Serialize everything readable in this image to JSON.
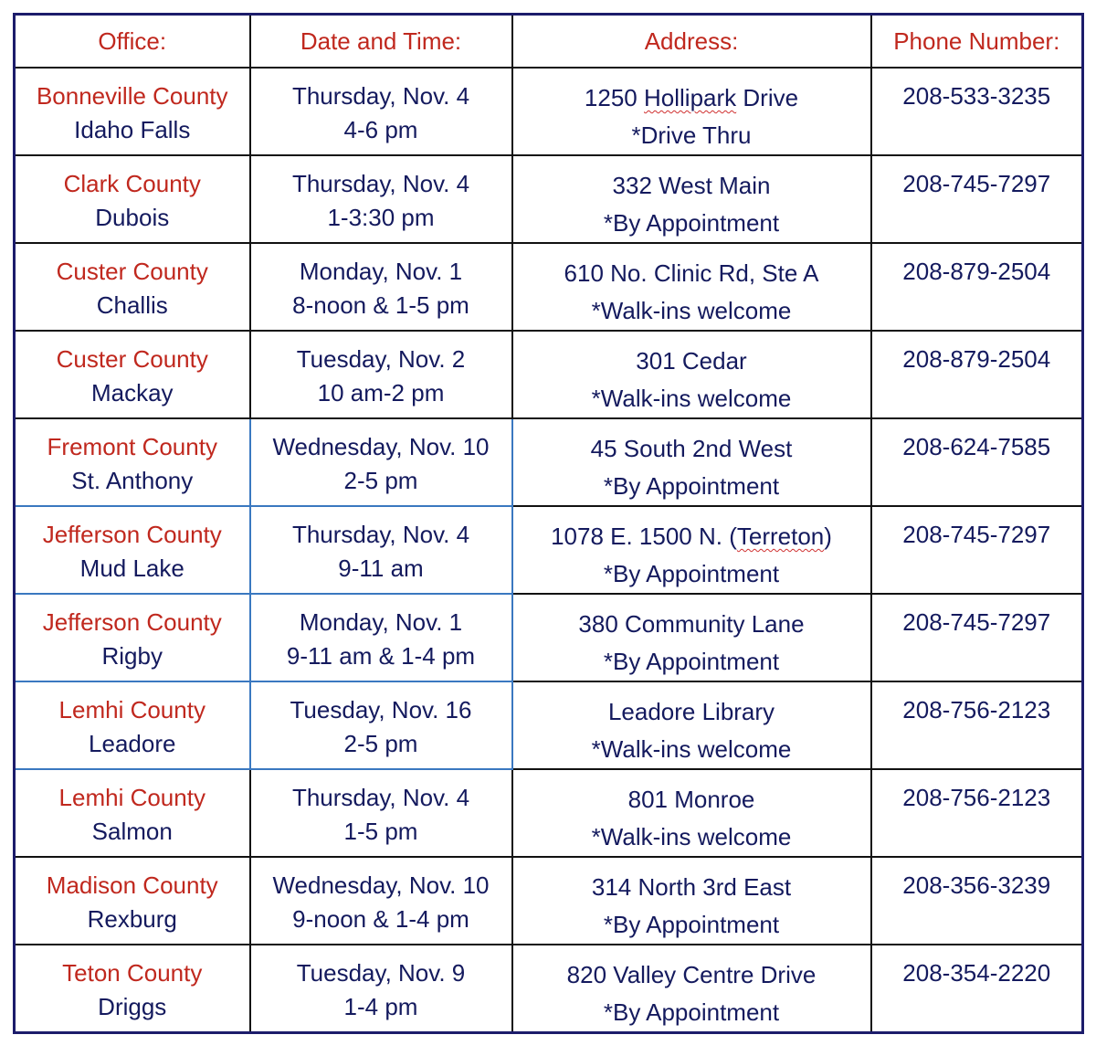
{
  "headers": {
    "office": "Office:",
    "date": "Date and Time:",
    "address": "Address:",
    "phone": "Phone Number:"
  },
  "colors": {
    "header_text": "#c0281e",
    "body_text": "#141a5e",
    "outer_border": "#1c1c6b",
    "highlight_border": "#3a78c0"
  },
  "rows": [
    {
      "county": "Bonneville County",
      "city": "Idaho Falls",
      "day": "Thursday, Nov. 4",
      "time": "4-6 pm",
      "address": "1250 Hollipark Drive",
      "note": "*Drive Thru",
      "phone": "208-533-3235"
    },
    {
      "county": "Clark County",
      "city": "Dubois",
      "day": "Thursday, Nov. 4",
      "time": "1-3:30 pm",
      "address": "332 West Main",
      "note": "*By Appointment",
      "phone": "208-745-7297"
    },
    {
      "county": "Custer County",
      "city": "Challis",
      "day": "Monday, Nov. 1",
      "time": "8-noon & 1-5 pm",
      "address": "610 No. Clinic Rd, Ste A",
      "note": "*Walk-ins welcome",
      "phone": "208-879-2504"
    },
    {
      "county": "Custer County",
      "city": "Mackay",
      "day": "Tuesday, Nov. 2",
      "time": "10 am-2 pm",
      "address": "301 Cedar",
      "note": "*Walk-ins welcome",
      "phone": "208-879-2504"
    },
    {
      "county": "Fremont County",
      "city": "St. Anthony",
      "day": "Wednesday, Nov. 10",
      "time": "2-5 pm",
      "address": "45 South 2nd West",
      "note": "*By Appointment",
      "phone": "208-624-7585"
    },
    {
      "county": "Jefferson County",
      "city": "Mud Lake",
      "day": "Thursday, Nov. 4",
      "time": "9-11 am",
      "address": "1078 E. 1500 N. (Terreton)",
      "note": "*By Appointment",
      "phone": "208-745-7297"
    },
    {
      "county": "Jefferson County",
      "city": "Rigby",
      "day": "Monday, Nov. 1",
      "time": "9-11 am & 1-4 pm",
      "address": "380 Community Lane",
      "note": "*By Appointment",
      "phone": "208-745-7297"
    },
    {
      "county": "Lemhi County",
      "city": "Leadore",
      "day": "Tuesday, Nov. 16",
      "time": "2-5 pm",
      "address": "Leadore Library",
      "note": "*Walk-ins welcome",
      "phone": "208-756-2123"
    },
    {
      "county": "Lemhi County",
      "city": "Salmon",
      "day": "Thursday, Nov. 4",
      "time": "1-5 pm",
      "address": "801 Monroe",
      "note": "*Walk-ins welcome",
      "phone": "208-756-2123"
    },
    {
      "county": "Madison County",
      "city": "Rexburg",
      "day": "Wednesday, Nov. 10",
      "time": "9-noon & 1-4 pm",
      "address": "314 North 3rd East",
      "note": "*By Appointment",
      "phone": "208-356-3239"
    },
    {
      "county": "Teton County",
      "city": "Driggs",
      "day": "Tuesday, Nov. 9",
      "time": "1-4 pm",
      "address": "820 Valley Centre Drive",
      "note": "*By Appointment",
      "phone": "208-354-2220"
    }
  ]
}
